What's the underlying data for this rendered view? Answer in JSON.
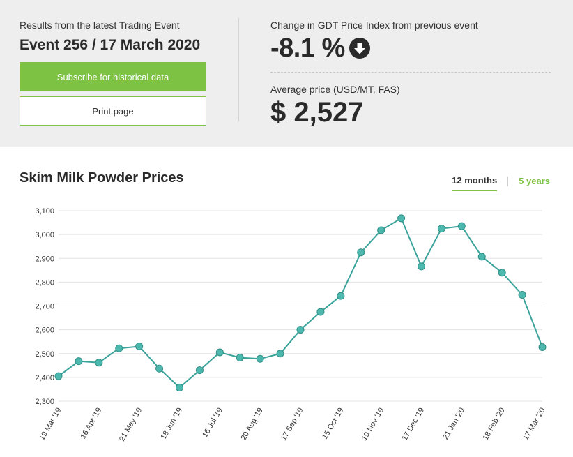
{
  "summary": {
    "results_caption": "Results from the latest Trading Event",
    "event_title": "Event 256 / 17 March 2020",
    "subscribe_label": "Subscribe for historical data",
    "print_label": "Print page",
    "change_caption": "Change in GDT Price Index from previous event",
    "change_value": "-8.1 %",
    "change_direction_icon": "arrow-down-circle-icon",
    "avg_caption": "Average price (USD/MT, FAS)",
    "avg_value": "$ 2,527"
  },
  "chart_header": {
    "title": "Skim Milk Powder Prices",
    "tabs": [
      "12 months",
      "5 years"
    ],
    "active_tab": "12 months"
  },
  "colors": {
    "accent_green": "#7dc242",
    "line": "#3aa39a",
    "marker_fill": "#4db8ad",
    "panel_bg": "#eeeeee"
  },
  "chart_data": {
    "type": "line",
    "title": "Skim Milk Powder Prices",
    "xlabel": "",
    "ylabel": "",
    "ylim": [
      2300,
      3100
    ],
    "yticks": [
      2300,
      2400,
      2500,
      2600,
      2700,
      2800,
      2900,
      3000,
      3100
    ],
    "grid": true,
    "x_tick_labels": [
      "19 Mar '19",
      "16 Apr '19",
      "21 May '19",
      "18 Jun '19",
      "16 Jul '19",
      "20 Aug '19",
      "17 Sep '19",
      "15 Oct '19",
      "19 Nov '19",
      "17 Dec '19",
      "21 Jan '20",
      "18 Feb '20",
      "17 Mar '20"
    ],
    "series": [
      {
        "values": [
          2405,
          2468,
          2462,
          2522,
          2530,
          2437,
          2357,
          2430,
          2505,
          2483,
          2478,
          2500,
          2600,
          2675,
          2742,
          2925,
          3018,
          3068,
          2866,
          3025,
          3035,
          2907,
          2840,
          2747,
          2527
        ]
      }
    ]
  }
}
